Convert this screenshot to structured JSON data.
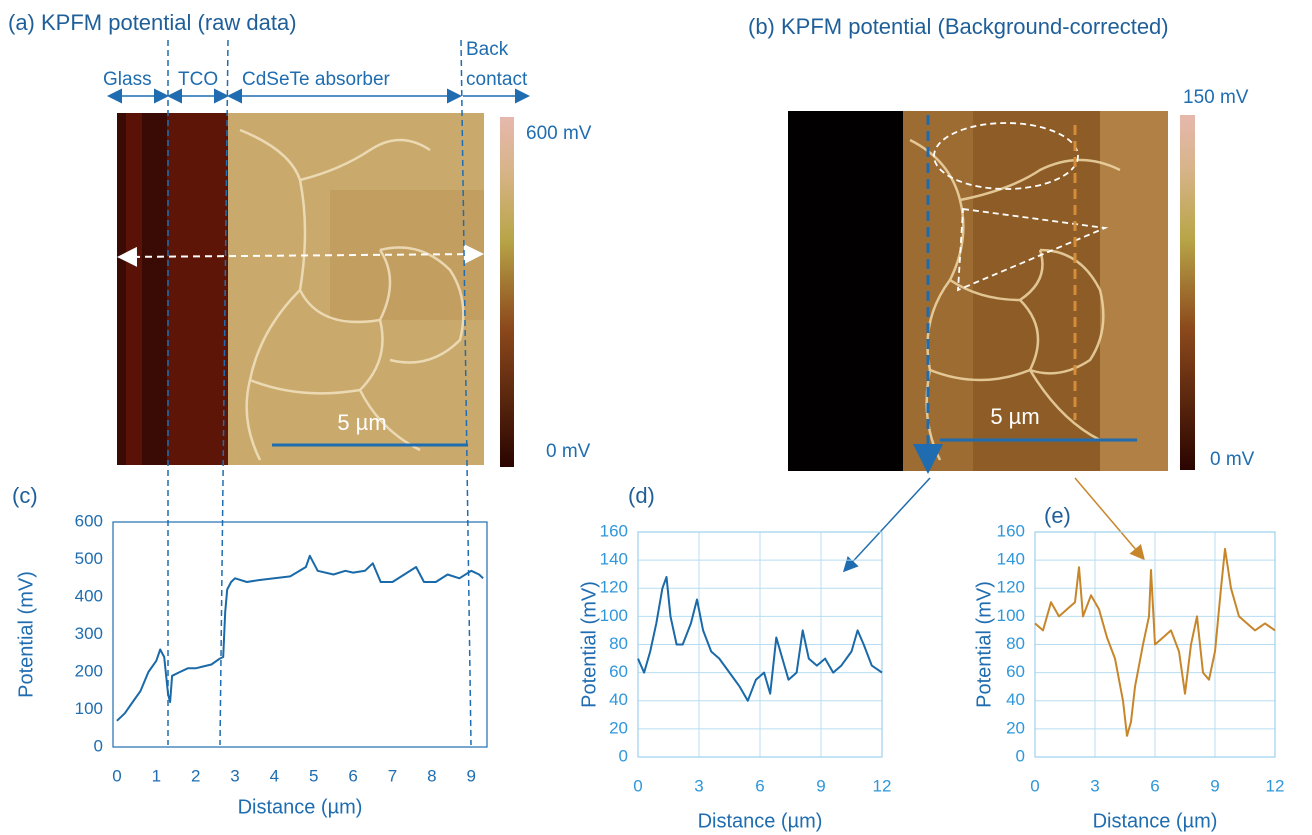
{
  "panels": [
    {
      "title": "(a) KPFM potential (raw data)",
      "regions": [
        "Glass",
        "TCO",
        "CdSeTe absorber",
        "Back",
        "contact"
      ],
      "colorbar_max": "600 mV",
      "colorbar_min": "0 mV",
      "scale_bar": "5 µm"
    },
    {
      "title": "(b) KPFM potential (Background-corrected)",
      "colorbar_max": "150 mV",
      "colorbar_min": "0 mV",
      "scale_bar": "5 µm"
    }
  ],
  "chart_data": [
    {
      "type": "line",
      "panel_label": "(c)",
      "xlabel": "Distance (µm)",
      "ylabel": "Potential (mV)",
      "xlim": [
        -0.1,
        9.4
      ],
      "ylim": [
        0,
        600
      ],
      "xticks": [
        0,
        1,
        2,
        3,
        4,
        5,
        6,
        7,
        8,
        9
      ],
      "yticks": [
        0,
        100,
        200,
        300,
        400,
        500,
        600
      ],
      "grid": false,
      "color": "#1a69a8",
      "x": [
        0,
        0.2,
        0.4,
        0.6,
        0.8,
        1.0,
        1.1,
        1.2,
        1.3,
        1.35,
        1.4,
        1.6,
        1.8,
        2.0,
        2.2,
        2.4,
        2.6,
        2.7,
        2.75,
        2.8,
        2.9,
        3.0,
        3.3,
        3.6,
        4.0,
        4.4,
        4.8,
        4.9,
        5.1,
        5.5,
        5.8,
        6.0,
        6.3,
        6.5,
        6.7,
        7.0,
        7.3,
        7.6,
        7.8,
        8.1,
        8.4,
        8.7,
        9.0,
        9.2,
        9.3
      ],
      "values": [
        70,
        90,
        120,
        150,
        200,
        230,
        260,
        240,
        140,
        120,
        190,
        200,
        210,
        210,
        215,
        220,
        235,
        240,
        360,
        420,
        440,
        450,
        440,
        445,
        450,
        455,
        480,
        510,
        470,
        460,
        470,
        465,
        470,
        490,
        440,
        440,
        460,
        480,
        440,
        440,
        460,
        450,
        470,
        460,
        450
      ]
    },
    {
      "type": "line",
      "panel_label": "(d)",
      "xlabel": "Distance (µm)",
      "ylabel": "Potential (mV)",
      "xlim": [
        0,
        12
      ],
      "ylim": [
        0,
        160
      ],
      "xticks": [
        0,
        3,
        6,
        9,
        12
      ],
      "yticks": [
        0,
        20,
        40,
        60,
        80,
        100,
        120,
        140,
        160
      ],
      "grid": true,
      "color": "#1a69a8",
      "x": [
        0,
        0.3,
        0.6,
        0.9,
        1.2,
        1.4,
        1.6,
        1.9,
        2.2,
        2.6,
        2.9,
        3.2,
        3.6,
        4.0,
        4.5,
        5.0,
        5.4,
        5.8,
        6.2,
        6.5,
        6.8,
        7.1,
        7.4,
        7.8,
        8.1,
        8.4,
        8.8,
        9.2,
        9.6,
        10.0,
        10.5,
        10.8,
        11.1,
        11.5,
        12
      ],
      "values": [
        70,
        60,
        75,
        95,
        120,
        128,
        100,
        80,
        80,
        95,
        112,
        90,
        75,
        70,
        60,
        50,
        40,
        55,
        60,
        45,
        85,
        70,
        55,
        60,
        90,
        70,
        65,
        70,
        60,
        65,
        75,
        90,
        80,
        65,
        60
      ]
    },
    {
      "type": "line",
      "panel_label": "(e)",
      "xlabel": "Distance (µm)",
      "ylabel": "Potential (mV)",
      "xlim": [
        0,
        12
      ],
      "ylim": [
        0,
        160
      ],
      "xticks": [
        0,
        3,
        6,
        9,
        12
      ],
      "yticks": [
        0,
        20,
        40,
        60,
        80,
        100,
        120,
        140,
        160
      ],
      "grid": true,
      "color": "#c8862a",
      "x": [
        0,
        0.4,
        0.8,
        1.2,
        1.6,
        2.0,
        2.2,
        2.4,
        2.8,
        3.2,
        3.6,
        4.0,
        4.4,
        4.6,
        4.8,
        5.0,
        5.4,
        5.7,
        5.8,
        6.0,
        6.4,
        6.8,
        7.2,
        7.5,
        7.8,
        8.1,
        8.4,
        8.7,
        9.0,
        9.3,
        9.5,
        9.8,
        10.2,
        10.6,
        11.0,
        11.5,
        12
      ],
      "values": [
        95,
        90,
        110,
        100,
        105,
        110,
        135,
        100,
        115,
        105,
        85,
        70,
        40,
        15,
        25,
        50,
        80,
        100,
        133,
        80,
        85,
        90,
        75,
        45,
        80,
        100,
        60,
        55,
        75,
        120,
        148,
        120,
        100,
        95,
        90,
        95,
        90
      ]
    }
  ]
}
